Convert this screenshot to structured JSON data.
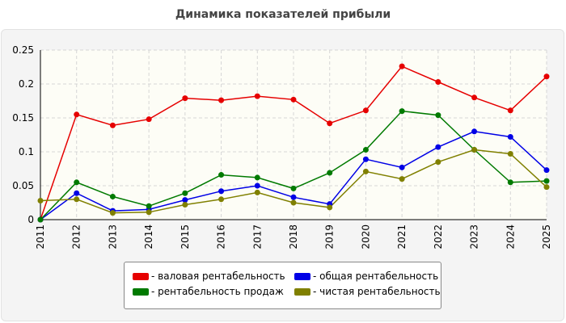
{
  "chart_data": {
    "type": "line",
    "title": "Динамика показателей прибыли",
    "x": [
      "2011",
      "2012",
      "2013",
      "2014",
      "2015",
      "2016",
      "2017",
      "2018",
      "2019",
      "2020",
      "2021",
      "2022",
      "2023",
      "2024",
      "2025"
    ],
    "ylim": [
      0,
      0.25
    ],
    "yticks": [
      "0",
      "0.05",
      "0.1",
      "0.15",
      "0.2",
      "0.25"
    ],
    "grid": true,
    "legend_position": "bottom",
    "series": [
      {
        "name": "- валовая рентабельность",
        "color": "#e60000",
        "values": [
          0,
          0.155,
          0.139,
          0.148,
          0.179,
          0.176,
          0.182,
          0.177,
          0.142,
          0.161,
          0.226,
          0.203,
          0.18,
          0.161,
          0.211
        ]
      },
      {
        "name": "- общая рентабельность",
        "color": "#0000e6",
        "values": [
          0,
          0.039,
          0.013,
          0.015,
          0.029,
          0.042,
          0.05,
          0.033,
          0.023,
          0.089,
          0.077,
          0.107,
          0.13,
          0.122,
          0.073
        ]
      },
      {
        "name": "- рентабельность продаж",
        "color": "#007a00",
        "values": [
          0,
          0.055,
          0.034,
          0.02,
          0.039,
          0.066,
          0.062,
          0.046,
          0.069,
          0.103,
          0.16,
          0.154,
          0.103,
          0.055,
          0.057
        ]
      },
      {
        "name": "- чистая рентабельность",
        "color": "#808000",
        "values": [
          0.028,
          0.03,
          0.01,
          0.011,
          0.022,
          0.03,
          0.04,
          0.025,
          0.018,
          0.071,
          0.06,
          0.085,
          0.103,
          0.097,
          0.048
        ]
      }
    ]
  }
}
